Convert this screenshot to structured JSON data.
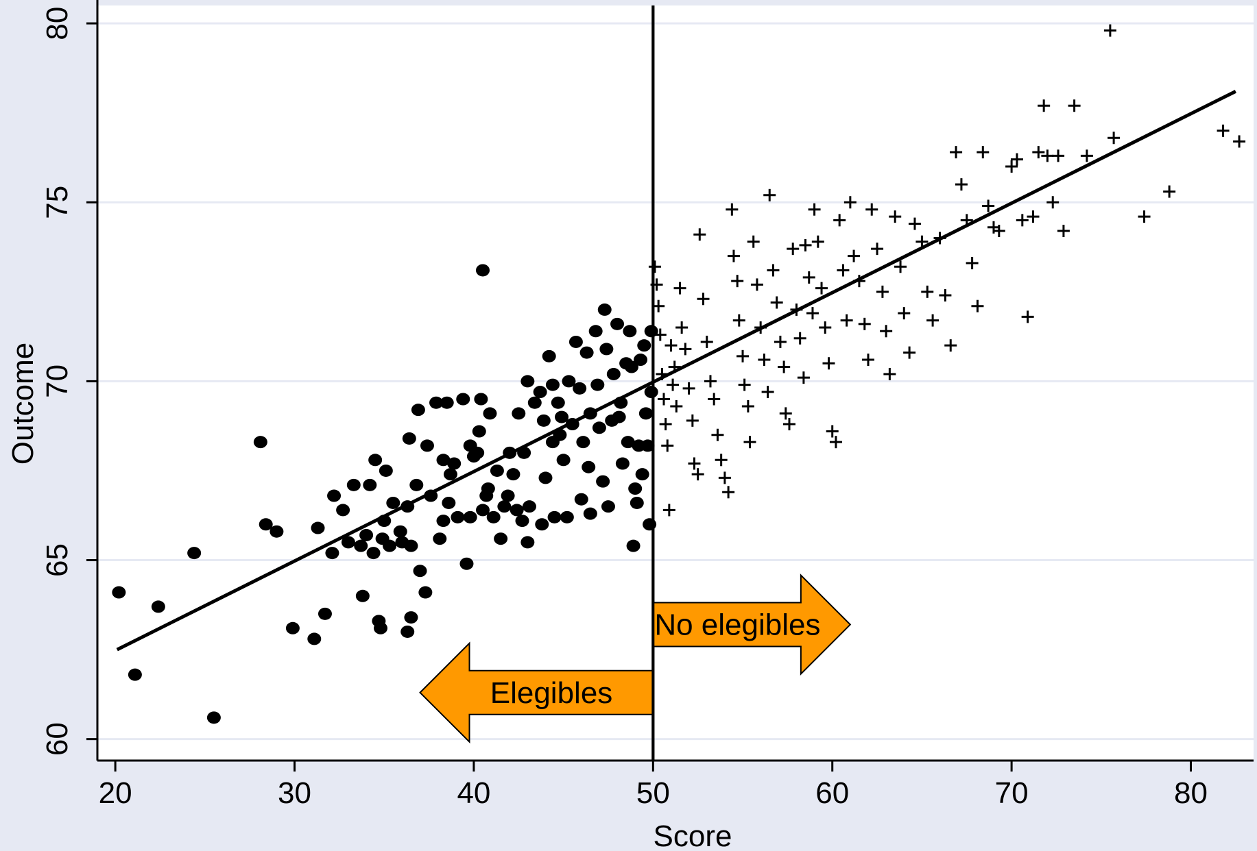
{
  "colors": {
    "background": "#e6e9f3",
    "plot_background": "#ffffff",
    "gridline": "#e6e9f3",
    "points": "#000000",
    "fit_line": "#000000",
    "arrow_fill": "#ff9900",
    "arrow_stroke": "#000000"
  },
  "chart_data": {
    "type": "scatter",
    "xlabel": "Score",
    "ylabel": "Outcome",
    "xlim": [
      19,
      83.5
    ],
    "ylim": [
      59.4,
      80.5
    ],
    "xticks": [
      20,
      30,
      40,
      50,
      60,
      70,
      80
    ],
    "yticks": [
      60,
      65,
      70,
      75,
      80
    ],
    "grid": true,
    "cutoff_x": 50,
    "fit_line": {
      "x1": 20.1,
      "y1": 62.5,
      "x2": 82.5,
      "y2": 78.1
    },
    "annotations": [
      {
        "text": "Elegibles",
        "direction": "left",
        "x_from": 50,
        "x_to": 37,
        "y": 61.3
      },
      {
        "text": "No elegibles",
        "direction": "right",
        "x_from": 50,
        "x_to": 61,
        "y": 63.2
      }
    ],
    "series": [
      {
        "marker": "circle",
        "points": [
          [
            20.2,
            64.1
          ],
          [
            21.1,
            61.8
          ],
          [
            22.4,
            63.7
          ],
          [
            24.4,
            65.2
          ],
          [
            25.5,
            60.6
          ],
          [
            28.1,
            68.3
          ],
          [
            28.4,
            66.0
          ],
          [
            29.0,
            65.8
          ],
          [
            29.9,
            63.1
          ],
          [
            31.1,
            62.8
          ],
          [
            31.3,
            65.9
          ],
          [
            31.7,
            63.5
          ],
          [
            32.1,
            65.2
          ],
          [
            32.2,
            66.8
          ],
          [
            32.7,
            66.4
          ],
          [
            33.0,
            65.5
          ],
          [
            33.3,
            67.1
          ],
          [
            33.7,
            65.4
          ],
          [
            33.8,
            64.0
          ],
          [
            34.0,
            65.7
          ],
          [
            34.2,
            67.1
          ],
          [
            34.4,
            65.2
          ],
          [
            34.5,
            67.8
          ],
          [
            34.7,
            63.3
          ],
          [
            34.8,
            63.1
          ],
          [
            34.9,
            65.6
          ],
          [
            35.0,
            66.1
          ],
          [
            35.1,
            67.5
          ],
          [
            35.3,
            65.4
          ],
          [
            35.5,
            66.6
          ],
          [
            35.9,
            65.8
          ],
          [
            36.0,
            65.5
          ],
          [
            36.3,
            66.5
          ],
          [
            36.3,
            63.0
          ],
          [
            36.4,
            68.4
          ],
          [
            36.5,
            63.4
          ],
          [
            36.5,
            65.4
          ],
          [
            36.8,
            67.1
          ],
          [
            36.9,
            69.2
          ],
          [
            37.0,
            64.7
          ],
          [
            37.3,
            64.1
          ],
          [
            37.4,
            68.2
          ],
          [
            37.6,
            66.8
          ],
          [
            37.9,
            69.4
          ],
          [
            38.1,
            65.6
          ],
          [
            38.3,
            66.1
          ],
          [
            38.3,
            67.8
          ],
          [
            38.5,
            69.4
          ],
          [
            38.6,
            66.6
          ],
          [
            38.7,
            67.4
          ],
          [
            38.9,
            67.7
          ],
          [
            39.1,
            66.2
          ],
          [
            39.4,
            69.5
          ],
          [
            39.6,
            64.9
          ],
          [
            39.8,
            68.2
          ],
          [
            39.8,
            66.2
          ],
          [
            40.0,
            67.9
          ],
          [
            40.2,
            68.0
          ],
          [
            40.3,
            68.6
          ],
          [
            40.4,
            69.5
          ],
          [
            40.5,
            73.1
          ],
          [
            40.5,
            66.4
          ],
          [
            40.7,
            66.8
          ],
          [
            40.8,
            67.0
          ],
          [
            40.9,
            69.1
          ],
          [
            41.1,
            66.2
          ],
          [
            41.3,
            67.5
          ],
          [
            41.5,
            65.6
          ],
          [
            41.7,
            66.5
          ],
          [
            41.9,
            66.8
          ],
          [
            42.0,
            68.0
          ],
          [
            42.2,
            67.4
          ],
          [
            42.4,
            66.4
          ],
          [
            42.5,
            69.1
          ],
          [
            42.7,
            66.1
          ],
          [
            42.8,
            68.0
          ],
          [
            43.0,
            70.0
          ],
          [
            43.0,
            65.5
          ],
          [
            43.1,
            66.5
          ],
          [
            43.4,
            69.4
          ],
          [
            43.7,
            69.7
          ],
          [
            43.8,
            66.0
          ],
          [
            43.9,
            68.9
          ],
          [
            44.0,
            67.3
          ],
          [
            44.2,
            70.7
          ],
          [
            44.4,
            69.9
          ],
          [
            44.4,
            68.3
          ],
          [
            44.5,
            66.2
          ],
          [
            44.7,
            69.4
          ],
          [
            44.8,
            68.5
          ],
          [
            44.9,
            69.0
          ],
          [
            45.0,
            67.8
          ],
          [
            45.2,
            66.2
          ],
          [
            45.3,
            70.0
          ],
          [
            45.5,
            68.8
          ],
          [
            45.7,
            71.1
          ],
          [
            45.9,
            69.8
          ],
          [
            46.0,
            66.7
          ],
          [
            46.1,
            68.3
          ],
          [
            46.3,
            70.8
          ],
          [
            46.4,
            67.6
          ],
          [
            46.5,
            69.1
          ],
          [
            46.5,
            66.3
          ],
          [
            46.8,
            71.4
          ],
          [
            46.9,
            69.9
          ],
          [
            47.0,
            68.7
          ],
          [
            47.2,
            67.2
          ],
          [
            47.3,
            72.0
          ],
          [
            47.4,
            70.9
          ],
          [
            47.5,
            66.5
          ],
          [
            47.7,
            68.9
          ],
          [
            47.8,
            70.2
          ],
          [
            48.0,
            71.6
          ],
          [
            48.1,
            69.0
          ],
          [
            48.2,
            69.4
          ],
          [
            48.3,
            67.7
          ],
          [
            48.5,
            70.5
          ],
          [
            48.6,
            68.3
          ],
          [
            48.7,
            71.4
          ],
          [
            48.8,
            70.4
          ],
          [
            48.9,
            65.4
          ],
          [
            49.0,
            67.0
          ],
          [
            49.1,
            66.6
          ],
          [
            49.2,
            68.2
          ],
          [
            49.3,
            70.6
          ],
          [
            49.4,
            67.4
          ],
          [
            49.5,
            71.0
          ],
          [
            49.6,
            69.1
          ],
          [
            49.7,
            68.2
          ],
          [
            49.8,
            66.0
          ],
          [
            49.9,
            71.4
          ],
          [
            49.9,
            69.7
          ]
        ]
      },
      {
        "marker": "plus",
        "points": [
          [
            50.1,
            73.2
          ],
          [
            50.2,
            72.7
          ],
          [
            50.3,
            72.1
          ],
          [
            50.4,
            71.3
          ],
          [
            50.5,
            70.2
          ],
          [
            50.6,
            69.5
          ],
          [
            50.7,
            68.8
          ],
          [
            50.8,
            68.2
          ],
          [
            50.9,
            66.4
          ],
          [
            51.0,
            71.0
          ],
          [
            51.1,
            69.9
          ],
          [
            51.2,
            70.4
          ],
          [
            51.3,
            69.3
          ],
          [
            51.5,
            72.6
          ],
          [
            51.6,
            71.5
          ],
          [
            51.8,
            70.9
          ],
          [
            52.0,
            69.8
          ],
          [
            52.2,
            68.9
          ],
          [
            52.3,
            67.7
          ],
          [
            52.5,
            67.4
          ],
          [
            52.6,
            74.1
          ],
          [
            52.8,
            72.3
          ],
          [
            53.0,
            71.1
          ],
          [
            53.2,
            70.0
          ],
          [
            53.4,
            69.5
          ],
          [
            53.6,
            68.5
          ],
          [
            53.8,
            67.8
          ],
          [
            54.0,
            67.3
          ],
          [
            54.2,
            66.9
          ],
          [
            54.4,
            74.8
          ],
          [
            54.5,
            73.5
          ],
          [
            54.7,
            72.8
          ],
          [
            54.8,
            71.7
          ],
          [
            55.0,
            70.7
          ],
          [
            55.1,
            69.9
          ],
          [
            55.3,
            69.3
          ],
          [
            55.4,
            68.3
          ],
          [
            55.6,
            73.9
          ],
          [
            55.8,
            72.7
          ],
          [
            56.0,
            71.5
          ],
          [
            56.2,
            70.6
          ],
          [
            56.4,
            69.7
          ],
          [
            56.5,
            75.2
          ],
          [
            56.7,
            73.1
          ],
          [
            56.9,
            72.2
          ],
          [
            57.1,
            71.1
          ],
          [
            57.3,
            70.4
          ],
          [
            57.4,
            69.1
          ],
          [
            57.6,
            68.8
          ],
          [
            57.8,
            73.7
          ],
          [
            58.0,
            72.0
          ],
          [
            58.2,
            71.2
          ],
          [
            58.4,
            70.1
          ],
          [
            58.5,
            73.8
          ],
          [
            58.7,
            72.9
          ],
          [
            58.9,
            71.9
          ],
          [
            59.0,
            74.8
          ],
          [
            59.2,
            73.9
          ],
          [
            59.4,
            72.6
          ],
          [
            59.6,
            71.5
          ],
          [
            59.8,
            70.5
          ],
          [
            60.0,
            68.6
          ],
          [
            60.2,
            68.3
          ],
          [
            60.4,
            74.5
          ],
          [
            60.6,
            73.1
          ],
          [
            60.8,
            71.7
          ],
          [
            61.0,
            75.0
          ],
          [
            61.2,
            73.5
          ],
          [
            61.5,
            72.8
          ],
          [
            61.8,
            71.6
          ],
          [
            62.0,
            70.6
          ],
          [
            62.2,
            74.8
          ],
          [
            62.5,
            73.7
          ],
          [
            62.8,
            72.5
          ],
          [
            63.0,
            71.4
          ],
          [
            63.2,
            70.2
          ],
          [
            63.5,
            74.6
          ],
          [
            63.8,
            73.2
          ],
          [
            64.0,
            71.9
          ],
          [
            64.3,
            70.8
          ],
          [
            64.6,
            74.4
          ],
          [
            65.0,
            73.9
          ],
          [
            65.3,
            72.5
          ],
          [
            65.6,
            71.7
          ],
          [
            66.0,
            74.0
          ],
          [
            66.3,
            72.4
          ],
          [
            66.6,
            71.0
          ],
          [
            66.9,
            76.4
          ],
          [
            67.2,
            75.5
          ],
          [
            67.5,
            74.5
          ],
          [
            67.8,
            73.3
          ],
          [
            68.1,
            72.1
          ],
          [
            68.4,
            76.4
          ],
          [
            68.7,
            74.9
          ],
          [
            69.0,
            74.3
          ],
          [
            69.3,
            74.2
          ],
          [
            70.0,
            76.0
          ],
          [
            70.3,
            76.2
          ],
          [
            70.6,
            74.5
          ],
          [
            70.9,
            71.8
          ],
          [
            71.2,
            74.6
          ],
          [
            71.5,
            76.4
          ],
          [
            71.8,
            77.7
          ],
          [
            72.0,
            76.3
          ],
          [
            72.3,
            75.0
          ],
          [
            72.6,
            76.3
          ],
          [
            72.9,
            74.2
          ],
          [
            73.5,
            77.7
          ],
          [
            74.2,
            76.3
          ],
          [
            75.5,
            79.8
          ],
          [
            75.7,
            76.8
          ],
          [
            77.4,
            74.6
          ],
          [
            78.8,
            75.3
          ],
          [
            81.8,
            77.0
          ],
          [
            82.7,
            76.7
          ]
        ]
      }
    ]
  }
}
